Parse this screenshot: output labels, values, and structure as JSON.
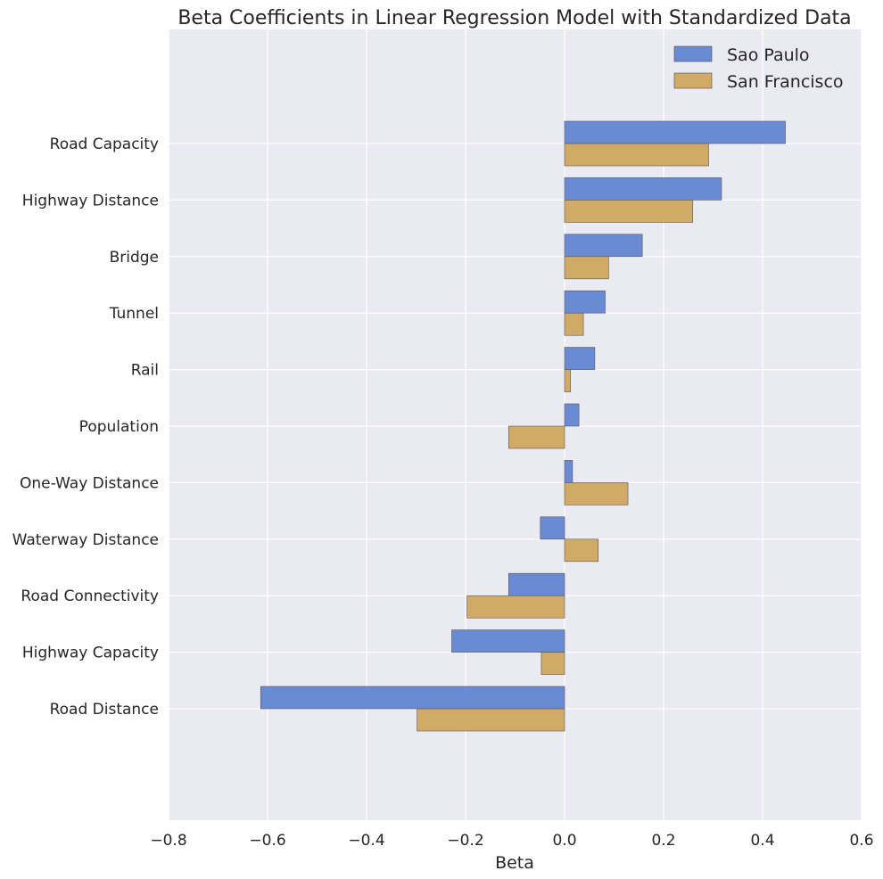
{
  "chart_data": {
    "type": "bar",
    "orientation": "horizontal",
    "title": "Beta Coefficients in Linear Regression Model with Standardized Data",
    "xlabel": "Beta",
    "ylabel": "",
    "xlim": [
      -0.8,
      0.6
    ],
    "xticks": [
      "−0.8",
      "−0.6",
      "−0.4",
      "−0.2",
      "0.0",
      "0.2",
      "0.4",
      "0.6"
    ],
    "xtick_values": [
      -0.8,
      -0.6,
      -0.4,
      -0.2,
      0.0,
      0.2,
      0.4,
      0.6
    ],
    "grid": true,
    "legend_position": "top-right",
    "categories": [
      "Road Capacity",
      "Highway Distance",
      "Bridge",
      "Tunnel",
      "Rail",
      "Population",
      "One-Way Distance",
      "Waterway Distance",
      "Road Connectivity",
      "Highway Capacity",
      "Road Distance"
    ],
    "series": [
      {
        "name": "Sao Paulo",
        "color": "#6a8bd4",
        "values": [
          0.446,
          0.317,
          0.157,
          0.082,
          0.061,
          0.029,
          0.016,
          -0.049,
          -0.113,
          -0.228,
          -0.614
        ]
      },
      {
        "name": "San Francisco",
        "color": "#d0aa66",
        "values": [
          0.291,
          0.259,
          0.089,
          0.038,
          0.012,
          -0.113,
          0.128,
          0.068,
          -0.197,
          -0.047,
          -0.298
        ]
      }
    ]
  }
}
